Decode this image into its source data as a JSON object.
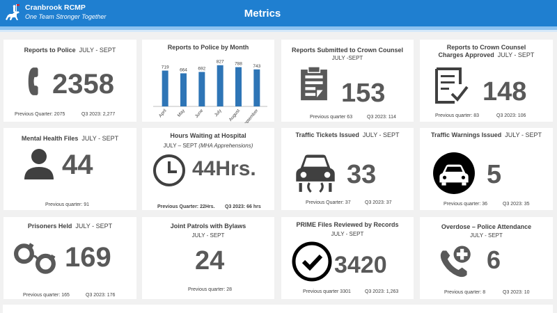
{
  "header": {
    "org_name": "Cranbrook RCMP",
    "org_tagline": "One Team Stronger Together",
    "page_title": "Metrics",
    "logo_icon": "horse-rider-icon"
  },
  "colors": {
    "header_blue": "#1f7fd0",
    "bar_blue": "#2e75b6",
    "icon_gray": "#595959"
  },
  "cards": {
    "reports_police": {
      "title": "Reports to Police",
      "period": "JULY - SEPT",
      "value": "2358",
      "icon": "phone-icon",
      "prev": "Previous Quarter: 2075",
      "q3": "Q3 2023: 2,277"
    },
    "reports_month": {
      "title": "Reports to Police by Month"
    },
    "crown_counsel": {
      "title": "Reports Submitted to Crown Counsel",
      "period": "JULY  -SEPT",
      "value": "153",
      "icon": "clipboard-icon",
      "prev": "Previous quarter 63",
      "q3": "Q3 2023: 114"
    },
    "charges_approved": {
      "title": "Reports to Crown Counsel",
      "title2": "Charges Approved",
      "period": "JULY - SEPT",
      "value": "148",
      "icon": "checklist-icon",
      "prev": "Previous quarter:  83",
      "q3": "Q3 2023: 106"
    },
    "mental_health": {
      "title": "Mental Health Files",
      "period": "JULY - SEPT",
      "value": "44",
      "icon": "person-icon",
      "prev": "Previous quarter: 91"
    },
    "hours_waiting": {
      "title": "Hours Waiting at Hospital",
      "sub": "JULY – SEPT",
      "sub_note": "(MHA Apprehensions)",
      "value": "44Hrs.",
      "icon": "clock-icon",
      "prev": "Previous  Quarter: 22Hrs.",
      "q3": "Q3 2023: 66 hrs"
    },
    "traffic_tickets": {
      "title": "Traffic Tickets Issued",
      "period": "JULY - SEPT",
      "value": "33",
      "icon": "car-skid-icon",
      "prev": "Previous Quarter: 37",
      "q3": "Q3 2023: 37"
    },
    "traffic_warnings": {
      "title": "Traffic Warnings Issued",
      "period": "JULY - SEPT",
      "value": "5",
      "icon": "car-circle-icon",
      "prev": "Previous quarter:  36",
      "q3": "Q3 2023: 35"
    },
    "prisoners": {
      "title": "Prisoners Held",
      "period": "JULY - SEPT",
      "value": "169",
      "icon": "handcuffs-icon",
      "prev": "Previous quarter: 165",
      "q3": "Q3 2023: 176"
    },
    "joint_patrols": {
      "title": "Joint Patrols with Bylaws",
      "sub": "JULY - SEPT",
      "value": "24",
      "prev": "Previous quarter:  28"
    },
    "prime_files": {
      "title": "PRIME Files Reviewed by Records",
      "sub": "JULY - SEPT",
      "value": "3420",
      "icon": "check-circle-icon",
      "prev": "Previous quarter 3301",
      "q3": "Q3 2023: 1,263"
    },
    "overdose": {
      "title": "Overdose – Police Attendance",
      "sub": "JULY  - SEPT",
      "value": "6",
      "icon": "phone-medical-icon",
      "prev": "Previous quarter: 8",
      "q3": "Q3 2023: 10"
    }
  },
  "chart_data": {
    "type": "bar",
    "title": "Reports to Police by Month",
    "categories": [
      "April",
      "May",
      "June",
      "July",
      "August",
      "September"
    ],
    "values": [
      719,
      664,
      692,
      827,
      788,
      743
    ],
    "ylim": [
      0,
      850
    ],
    "grid": false,
    "legend": "none"
  }
}
